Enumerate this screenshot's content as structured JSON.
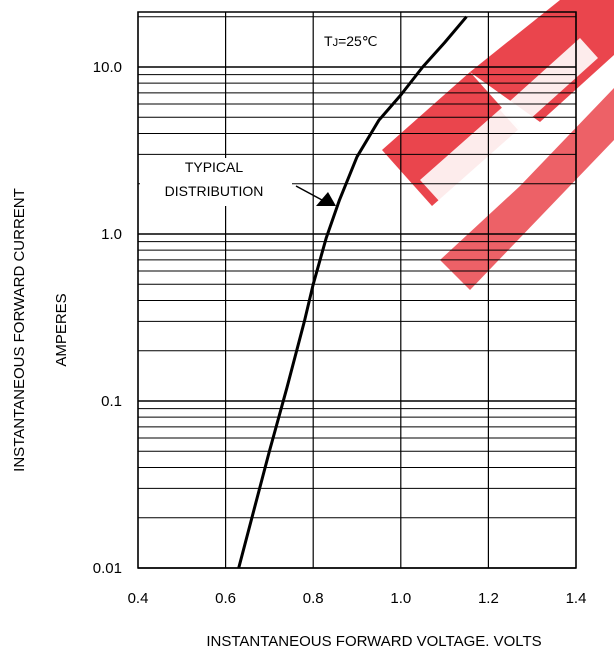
{
  "chart_data": {
    "type": "line",
    "title": "",
    "xlabel": "INSTANTANEOUS FORWARD VOLTAGE. VOLTS",
    "ylabel": [
      "INSTANTANEOUS FORWARD CURRENT",
      "AMPERES"
    ],
    "xlim": [
      0.4,
      1.4
    ],
    "ylim": [
      0.01,
      20
    ],
    "yscale": "log",
    "grid": true,
    "x_ticks": [
      0.4,
      0.6,
      0.8,
      1.0,
      1.2,
      1.4
    ],
    "x_tick_labels": [
      "0.4",
      "0.6",
      "0.8",
      "1.0",
      "1.2",
      "1.4"
    ],
    "y_ticks": [
      0.01,
      0.1,
      1.0,
      10.0
    ],
    "y_tick_labels": [
      "0.01",
      "0.1",
      "1.0",
      "10.0"
    ],
    "series": [
      {
        "color": "#000000",
        "x": [
          0.63,
          0.66,
          0.7,
          0.74,
          0.78,
          0.8,
          0.83,
          0.86,
          0.9,
          0.95,
          1.0,
          1.05,
          1.1,
          1.15
        ],
        "y": [
          0.01,
          0.02,
          0.05,
          0.12,
          0.3,
          0.5,
          0.95,
          1.6,
          2.9,
          4.8,
          6.8,
          10.0,
          14.0,
          20.0
        ]
      }
    ],
    "annotations": [
      {
        "lines": [
          "T",
          "J",
          "=25℃"
        ],
        "x": 1.0,
        "y": 20
      },
      {
        "lines": [
          "TYPICAL",
          "DISTRIBUTION"
        ],
        "x": 0.6,
        "y": 2.0
      }
    ],
    "watermark": {
      "text": "EEP",
      "color": "#e8313a"
    }
  }
}
